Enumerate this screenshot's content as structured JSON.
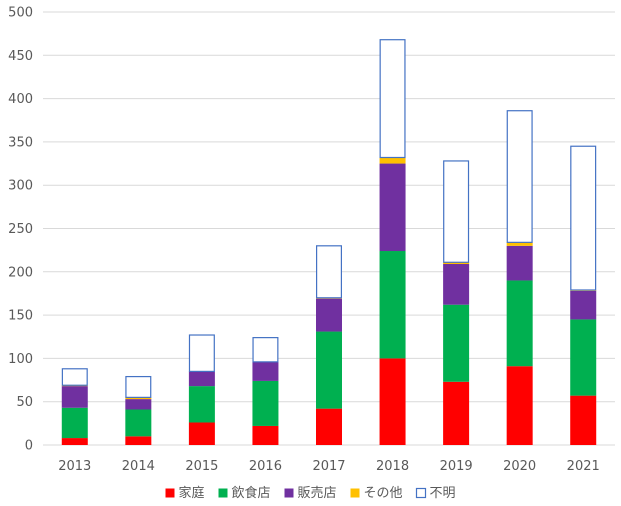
{
  "chart_data": {
    "type": "bar",
    "stacked": true,
    "categories": [
      "2013",
      "2014",
      "2015",
      "2016",
      "2017",
      "2018",
      "2019",
      "2020",
      "2021"
    ],
    "series": [
      {
        "name": "家庭",
        "color": "#ff0000",
        "fill": true,
        "values": [
          8,
          10,
          26,
          22,
          42,
          100,
          73,
          91,
          57
        ]
      },
      {
        "name": "飲食店",
        "color": "#00b050",
        "fill": true,
        "values": [
          35,
          31,
          42,
          52,
          89,
          124,
          89,
          99,
          88
        ]
      },
      {
        "name": "販売店",
        "color": "#7030a0",
        "fill": true,
        "values": [
          25,
          12,
          17,
          22,
          38,
          101,
          47,
          40,
          33
        ]
      },
      {
        "name": "その他",
        "color": "#ffc000",
        "fill": true,
        "values": [
          1,
          2,
          0,
          0,
          1,
          7,
          2,
          4,
          1
        ]
      },
      {
        "name": "不明",
        "color": "#4472c4",
        "fill": false,
        "values": [
          19,
          24,
          42,
          28,
          60,
          136,
          117,
          152,
          166
        ]
      }
    ],
    "ylim": [
      0,
      500
    ],
    "yticks": [
      0,
      50,
      100,
      150,
      200,
      250,
      300,
      350,
      400,
      450,
      500
    ],
    "grid": true,
    "legend_position": "bottom",
    "title": "",
    "xlabel": "",
    "ylabel": ""
  }
}
